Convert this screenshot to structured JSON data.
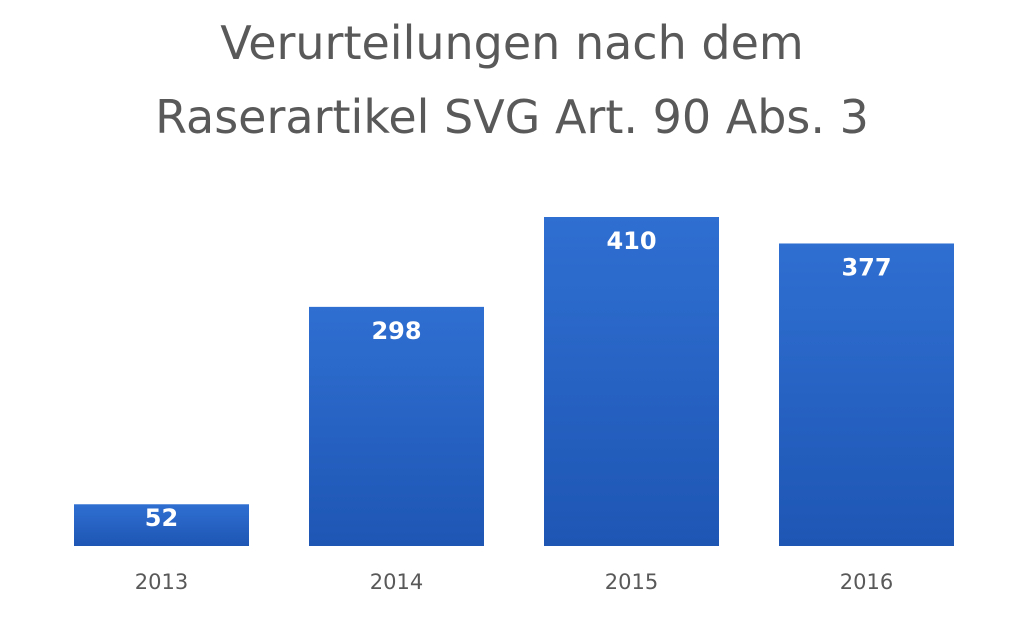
{
  "chart_data": {
    "type": "bar",
    "title_lines": [
      "Verurteilungen nach dem",
      "Raserartikel SVG Art. 90 Abs. 3"
    ],
    "categories": [
      "2013",
      "2014",
      "2015",
      "2016"
    ],
    "values": [
      52,
      298,
      410,
      377
    ],
    "xlabel": "",
    "ylabel": "",
    "ylim": [
      0,
      410
    ],
    "grid": false,
    "legend": "none",
    "colors": {
      "bar_top": "#2f6fd1",
      "bar_bottom": "#1e56b4",
      "label_text": "#ffffff",
      "tick_text": "#595959"
    }
  }
}
